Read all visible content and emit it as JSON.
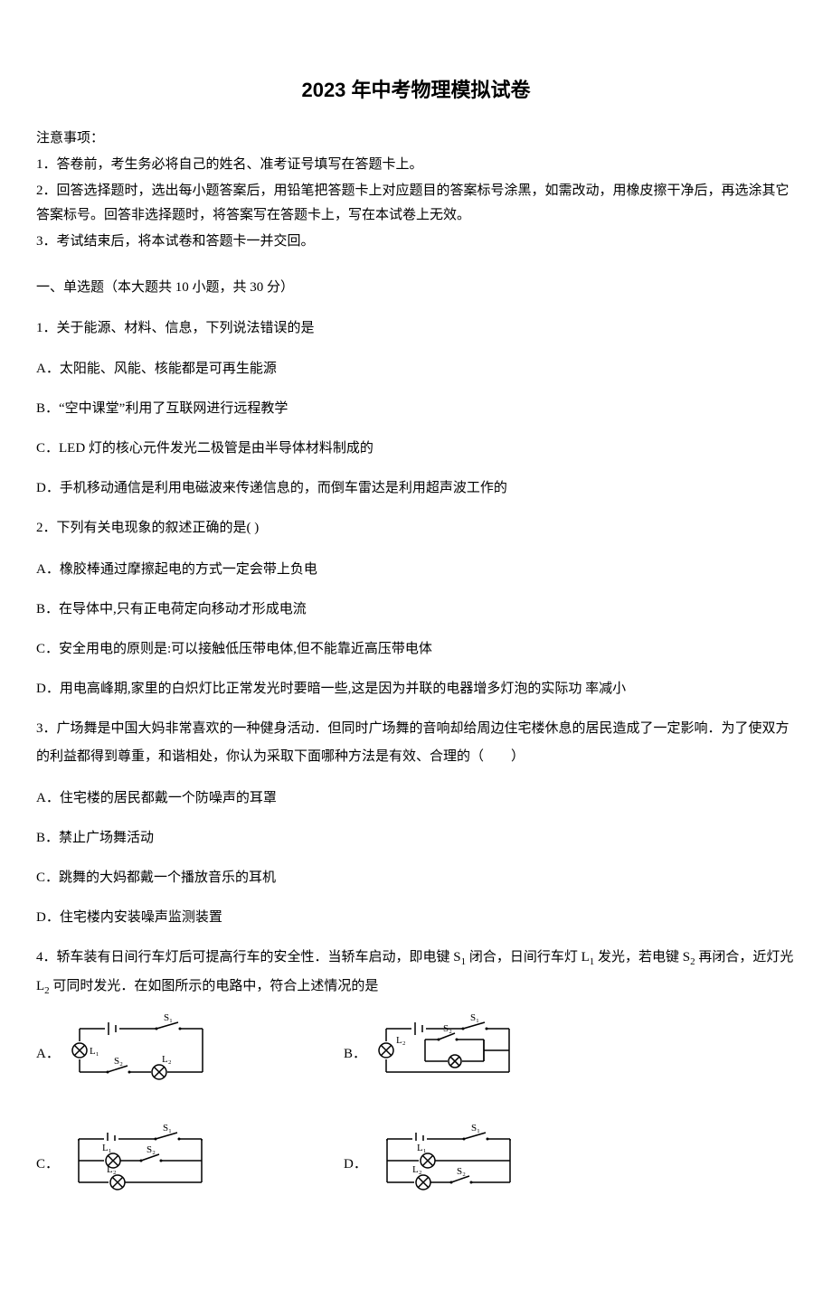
{
  "title": "2023 年中考物理模拟试卷",
  "notice": {
    "heading": "注意事项：",
    "items": [
      "1．答卷前，考生务必将自己的姓名、准考证号填写在答题卡上。",
      "2．回答选择题时，选出每小题答案后，用铅笔把答题卡上对应题目的答案标号涂黑，如需改动，用橡皮擦干净后，再选涂其它答案标号。回答非选择题时，将答案写在答题卡上，写在本试卷上无效。",
      "3．考试结束后，将本试卷和答题卡一并交回。"
    ]
  },
  "section1": {
    "header": "一、单选题（本大题共 10 小题，共 30 分）"
  },
  "q1": {
    "stem": "1．关于能源、材料、信息，下列说法错误的是",
    "a": "A．太阳能、风能、核能都是可再生能源",
    "b": "B．“空中课堂”利用了互联网进行远程教学",
    "c": "C．LED 灯的核心元件发光二极管是由半导体材料制成的",
    "d": "D．手机移动通信是利用电磁波来传递信息的，而倒车雷达是利用超声波工作的"
  },
  "q2": {
    "stem": "2．下列有关电现象的叙述正确的是(  )",
    "a": "A．橡胶棒通过摩擦起电的方式一定会带上负电",
    "b": "B．在导体中,只有正电荷定向移动才形成电流",
    "c": "C．安全用电的原则是:可以接触低压带电体,但不能靠近高压带电体",
    "d": "D．用电高峰期,家里的白炽灯比正常发光时要暗一些,这是因为并联的电器增多灯泡的实际功 率减小"
  },
  "q3": {
    "stem": "3．广场舞是中国大妈非常喜欢的一种健身活动．但同时广场舞的音响却给周边住宅楼休息的居民造成了一定影响．为了使双方的利益都得到尊重，和谐相处，你认为采取下面哪种方法是有效、合理的（　　）",
    "a": "A．住宅楼的居民都戴一个防噪声的耳罩",
    "b": "B．禁止广场舞活动",
    "c": "C．跳舞的大妈都戴一个播放音乐的耳机",
    "d": "D．住宅楼内安装噪声监测装置"
  },
  "q4": {
    "stem_p1": "4．轿车装有日间行车灯后可提高行车的安全性．当轿车启动，即电键 S",
    "stem_s1": "1",
    "stem_p2": " 闭合，日间行车灯 L",
    "stem_s2": "1",
    "stem_p3": " 发光，若电键 S",
    "stem_s3": "2",
    "stem_p4": " 再闭合，近灯光 L",
    "stem_s4": "2",
    "stem_p5": " 可同时发光．在如图所示的电路中，符合上述情况的是",
    "labels": {
      "a": "A．",
      "b": "B．",
      "c": "C．",
      "d": "D．"
    },
    "diagram_labels": {
      "s1": "S₁",
      "s2": "S₂",
      "l1": "L₁",
      "l2": "L₂"
    },
    "diagram": {
      "width": 160,
      "height": 80,
      "stroke": "#000",
      "stroke_width": 1.5,
      "font_size": 11,
      "font_family": "serif"
    }
  }
}
